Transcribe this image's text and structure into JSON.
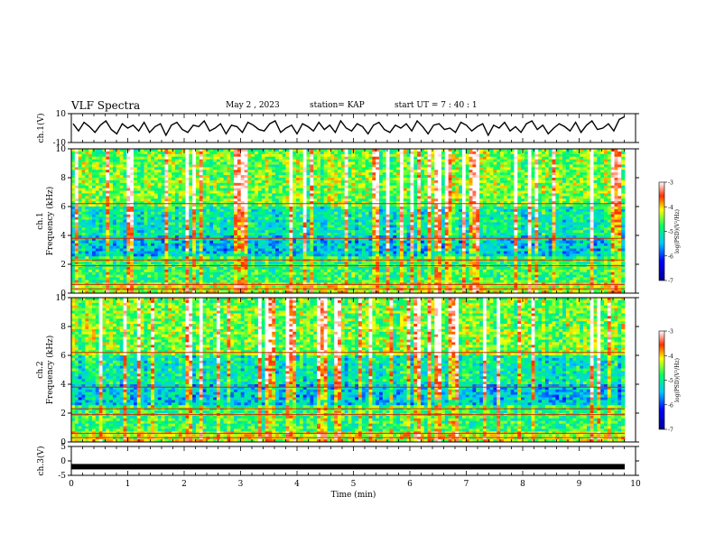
{
  "header": {
    "title": "VLF Spectra",
    "date": "May 2 , 2023",
    "station": "station= KAP",
    "start": "start UT = 7 : 40 : 1"
  },
  "chart_data": [
    {
      "type": "line",
      "ylabel": "ch.1(V)",
      "ylim": [
        -10,
        10
      ],
      "yticks": [
        10,
        -10
      ],
      "xlim": [
        0,
        10
      ],
      "series": [
        {
          "values": [
            3,
            -2,
            4,
            1,
            -3,
            2,
            5,
            -1,
            -4,
            3,
            0,
            2,
            -2,
            4,
            -3,
            1,
            3,
            -5,
            2,
            4,
            -1,
            -3,
            2,
            1,
            5,
            -2,
            0,
            3,
            -4,
            2,
            1,
            -3,
            4,
            2,
            -1,
            -2,
            3,
            5,
            -3,
            0,
            2,
            -4,
            3,
            1,
            -2,
            4,
            -1,
            2,
            -3,
            5,
            0,
            -2,
            3,
            1,
            -4,
            2,
            4,
            -1,
            -3,
            2,
            0,
            3,
            -2,
            5,
            1,
            -4,
            2,
            3,
            -1,
            0,
            -3,
            4,
            2,
            -2,
            1,
            3,
            -5,
            2,
            0,
            4,
            -2,
            1,
            -3,
            3,
            5,
            -1,
            2,
            -4,
            0,
            3,
            1,
            -2,
            4,
            -3,
            2,
            5,
            -1,
            0,
            3,
            -2,
            6,
            8
          ]
        }
      ]
    },
    {
      "type": "heatmap",
      "ylabel": "Frequency (kHz)",
      "channel_label": "ch.1",
      "ylim": [
        0,
        10
      ],
      "yticks": [
        0,
        2,
        4,
        6,
        8,
        10
      ],
      "xlim": [
        0,
        10
      ],
      "colorbar": {
        "label": "log(PSD)(V²/Hz)",
        "range": [
          -7,
          -3
        ],
        "ticks": [
          -3,
          -4,
          -5,
          -6,
          -7
        ]
      }
    },
    {
      "type": "heatmap",
      "ylabel": "Frequency (kHz)",
      "channel_label": "ch.2",
      "ylim": [
        0,
        10
      ],
      "yticks": [
        0,
        2,
        4,
        6,
        8,
        10
      ],
      "xlim": [
        0,
        10
      ],
      "colorbar": {
        "label": "log(PSD)(V²/Hz)",
        "range": [
          -7,
          -3
        ],
        "ticks": [
          -3,
          -4,
          -5,
          -6,
          -7
        ]
      }
    },
    {
      "type": "line",
      "ylabel": "ch.3(V)",
      "ylim": [
        -5,
        5
      ],
      "yticks": [
        5,
        0,
        -5
      ],
      "xlim": [
        0,
        10
      ],
      "series": [
        {
          "values": [
            -2,
            -2
          ]
        }
      ]
    }
  ],
  "xaxis": {
    "label": "Time (min)",
    "ticks": [
      0,
      1,
      2,
      3,
      4,
      5,
      6,
      7,
      8,
      9,
      10
    ]
  }
}
